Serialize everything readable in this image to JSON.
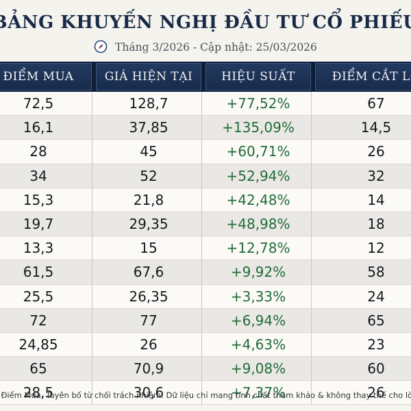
{
  "title": "BẢNG KHUYẾN NGHỊ ĐẦU TƯ CỔ PHIẾU",
  "subtitle": "Tháng 3/2026 - Cập nhật: 25/03/2026",
  "subtitle_icon": "compass-icon",
  "columns": [
    "ĐIỂM MUA",
    "GIÁ HIỆN TẠI",
    "HIỆU SUẤT",
    "ĐIỂM CẮT LỖ"
  ],
  "rows": [
    {
      "buy": "72,5",
      "current": "128,7",
      "performance": "+77,52%",
      "stop_loss": "67"
    },
    {
      "buy": "16,1",
      "current": "37,85",
      "performance": "+135,09%",
      "stop_loss": "14,5"
    },
    {
      "buy": "28",
      "current": "45",
      "performance": "+60,71%",
      "stop_loss": "26"
    },
    {
      "buy": "34",
      "current": "52",
      "performance": "+52,94%",
      "stop_loss": "32"
    },
    {
      "buy": "15,3",
      "current": "21,8",
      "performance": "+42,48%",
      "stop_loss": "14"
    },
    {
      "buy": "19,7",
      "current": "29,35",
      "performance": "+48,98%",
      "stop_loss": "18"
    },
    {
      "buy": "13,3",
      "current": "15",
      "performance": "+12,78%",
      "stop_loss": "12"
    },
    {
      "buy": "61,5",
      "current": "67,6",
      "performance": "+9,92%",
      "stop_loss": "58"
    },
    {
      "buy": "25,5",
      "current": "26,35",
      "performance": "+3,33%",
      "stop_loss": "24"
    },
    {
      "buy": "72",
      "current": "77",
      "performance": "+6,94%",
      "stop_loss": "65"
    },
    {
      "buy": "24,85",
      "current": "26",
      "performance": "+4,63%",
      "stop_loss": "23"
    },
    {
      "buy": "65",
      "current": "70,9",
      "performance": "+9,08%",
      "stop_loss": "60"
    },
    {
      "buy": "28,5",
      "current": "30,6",
      "performance": "+7,37%",
      "stop_loss": "26"
    }
  ],
  "disclaimer": "từ Điểm Mua. Tuyên bố từ chối trách nhiệm: Dữ liệu chỉ mang tính chất tham khảo & không thay thế cho lời",
  "colors": {
    "header_bg": "#1c2f4f",
    "title": "#182a48",
    "performance_text": "#226b38",
    "row_alt": "#e9e8e4",
    "row_plain": "#fbfaf7"
  }
}
